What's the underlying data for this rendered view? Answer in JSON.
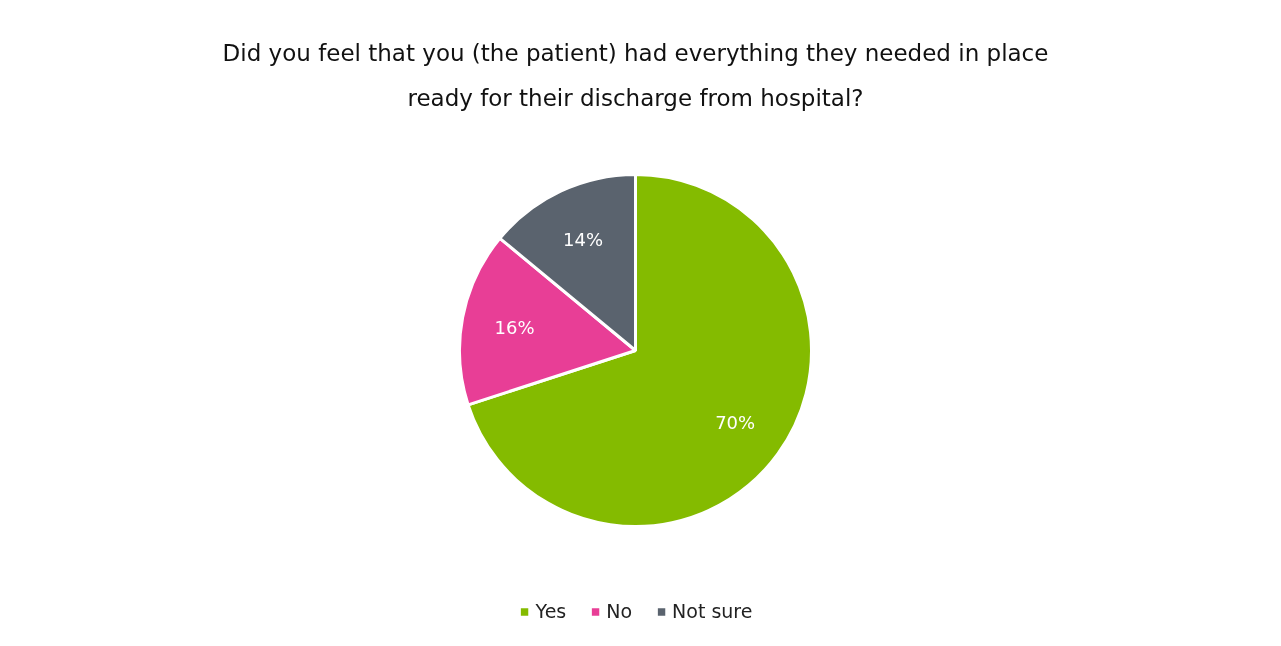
{
  "chart_data": {
    "type": "pie",
    "title": "Did you feel that you (the patient) had everything they needed in place ready for their discharge from hospital?",
    "categories": [
      "Yes",
      "No",
      "Not sure"
    ],
    "values": [
      70,
      16,
      14
    ],
    "colors": [
      "#84bb00",
      "#e83e96",
      "#5a636e"
    ],
    "value_labels": [
      "70%",
      "16%",
      "14%"
    ],
    "legend": "bottom"
  }
}
